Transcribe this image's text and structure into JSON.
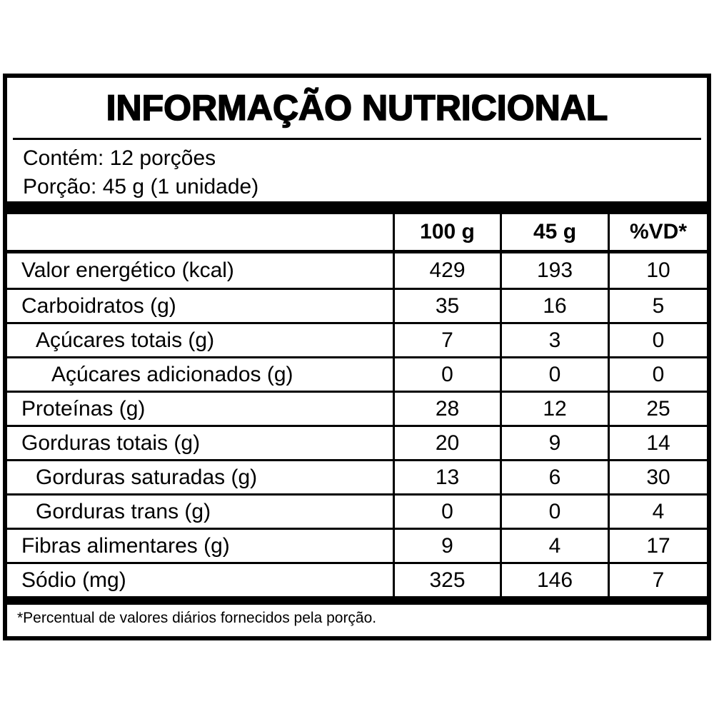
{
  "title": "INFORMAÇÃO NUTRICIONAL",
  "serving": {
    "servings_line": "Contém: 12 porções",
    "portion_line": "Porção: 45 g (1 unidade)"
  },
  "table": {
    "columns": [
      "100 g",
      "45 g",
      "%VD*"
    ],
    "rows": [
      {
        "label": "Valor energético (kcal)",
        "per100": "429",
        "per45": "193",
        "vd": "10",
        "indent": 0
      },
      {
        "label": "Carboidratos (g)",
        "per100": "35",
        "per45": "16",
        "vd": "5",
        "indent": 0
      },
      {
        "label": "Açúcares totais (g)",
        "per100": "7",
        "per45": "3",
        "vd": "0",
        "indent": 1
      },
      {
        "label": "Açúcares adicionados (g)",
        "per100": "0",
        "per45": "0",
        "vd": "0",
        "indent": 2
      },
      {
        "label": "Proteínas (g)",
        "per100": "28",
        "per45": "12",
        "vd": "25",
        "indent": 0
      },
      {
        "label": "Gorduras totais (g)",
        "per100": "20",
        "per45": "9",
        "vd": "14",
        "indent": 0
      },
      {
        "label": "Gorduras saturadas (g)",
        "per100": "13",
        "per45": "6",
        "vd": "30",
        "indent": 1
      },
      {
        "label": "Gorduras trans (g)",
        "per100": "0",
        "per45": "0",
        "vd": "4",
        "indent": 1
      },
      {
        "label": "Fibras alimentares (g)",
        "per100": "9",
        "per45": "4",
        "vd": "17",
        "indent": 0
      },
      {
        "label": "Sódio (mg)",
        "per100": "325",
        "per45": "146",
        "vd": "7",
        "indent": 0
      }
    ]
  },
  "footnote": "*Percentual de valores diários fornecidos pela porção.",
  "colors": {
    "border": "#000000",
    "background": "#ffffff",
    "text": "#000000"
  }
}
